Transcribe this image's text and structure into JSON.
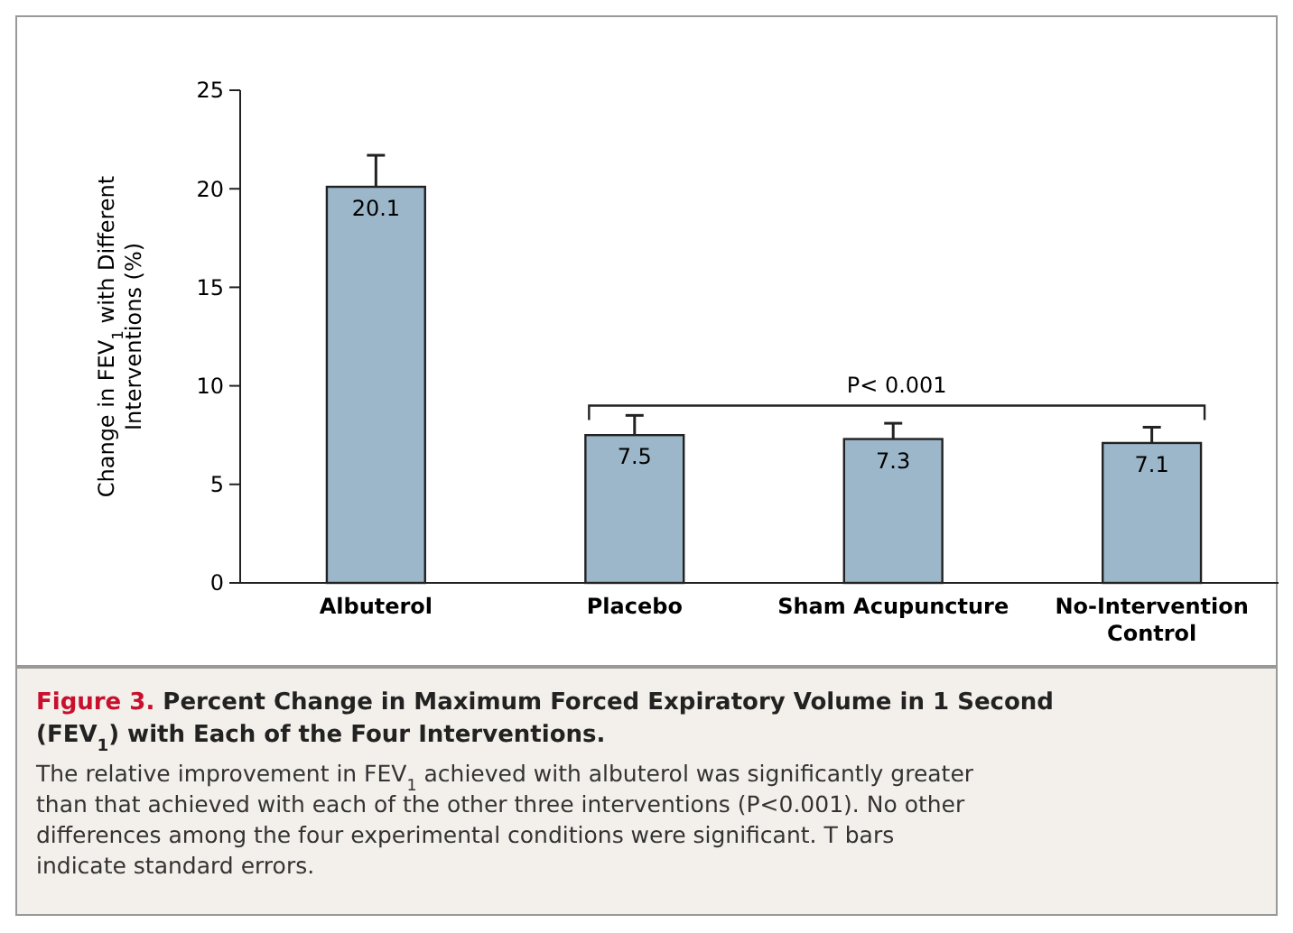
{
  "chart_data": {
    "type": "bar",
    "title": "Figure 3. Percent Change in Maximum Forced Expiratory Volume in 1 Second (FEV$_{1}$) with Each of the Four Interventions.",
    "ylabel": "Change in FEV$_{1}$ with Different Interventions (%)",
    "categories": [
      "Albuterol",
      "Placebo",
      "Sham Acupuncture",
      "No-Intervention Control"
    ],
    "values": [
      20.1,
      7.5,
      7.3,
      7.1
    ],
    "errors": [
      [
        20.1,
        21.7
      ],
      [
        7.5,
        8.5
      ],
      [
        7.3,
        8.1
      ],
      [
        7.1,
        7.9
      ]
    ],
    "color": "#9bb7c9",
    "ylim": [
      0,
      25
    ],
    "yticks": [
      0,
      5,
      10,
      15,
      20,
      25
    ],
    "grid": false,
    "data_labels": true,
    "annotations": [
      "P< 0.001",
      "The relative improvement in FEV$_{1}$ achieved with albuterol was significantly greater than that achieved with each of the other three interventions (P<0.001). No other differences among the four experimental conditions were significant. T bars indicate standard errors."
    ]
  }
}
